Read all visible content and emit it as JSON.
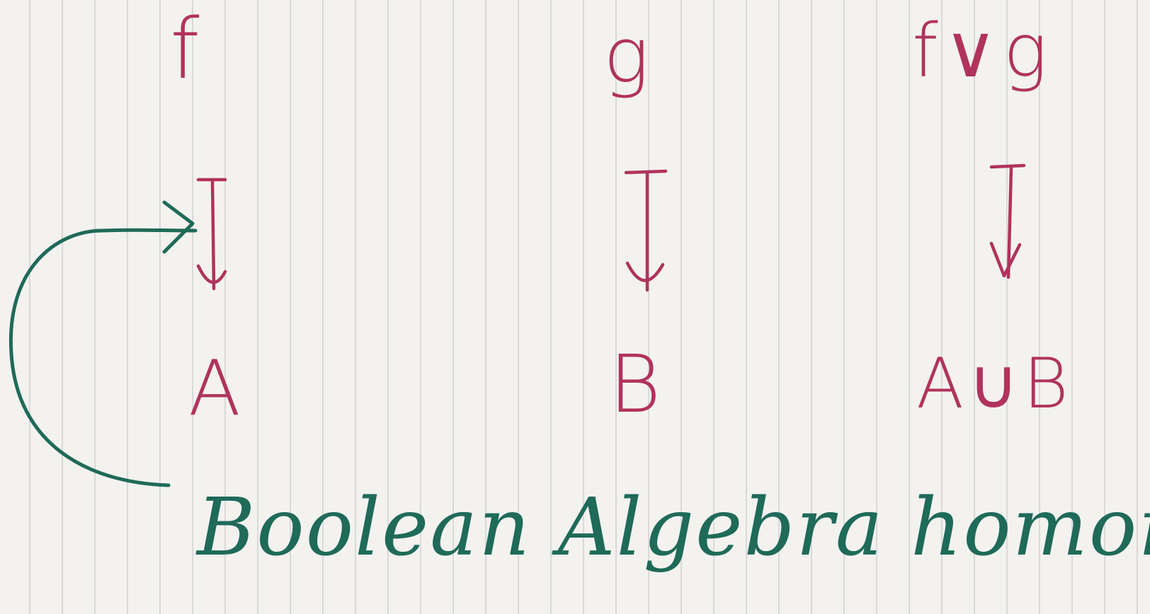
{
  "top_row": {
    "left": "f",
    "middle": "g",
    "right": "f∨g"
  },
  "bottom_row": {
    "left": "A",
    "middle": "B",
    "right": "A∪B"
  },
  "caption": "Boolean Algebra homomorphism",
  "colors": {
    "paper": "#f3f2ef",
    "ruling": "#bfc0c4",
    "magenta_ink": "#b0335d",
    "teal_ink": "#1f6a59"
  }
}
